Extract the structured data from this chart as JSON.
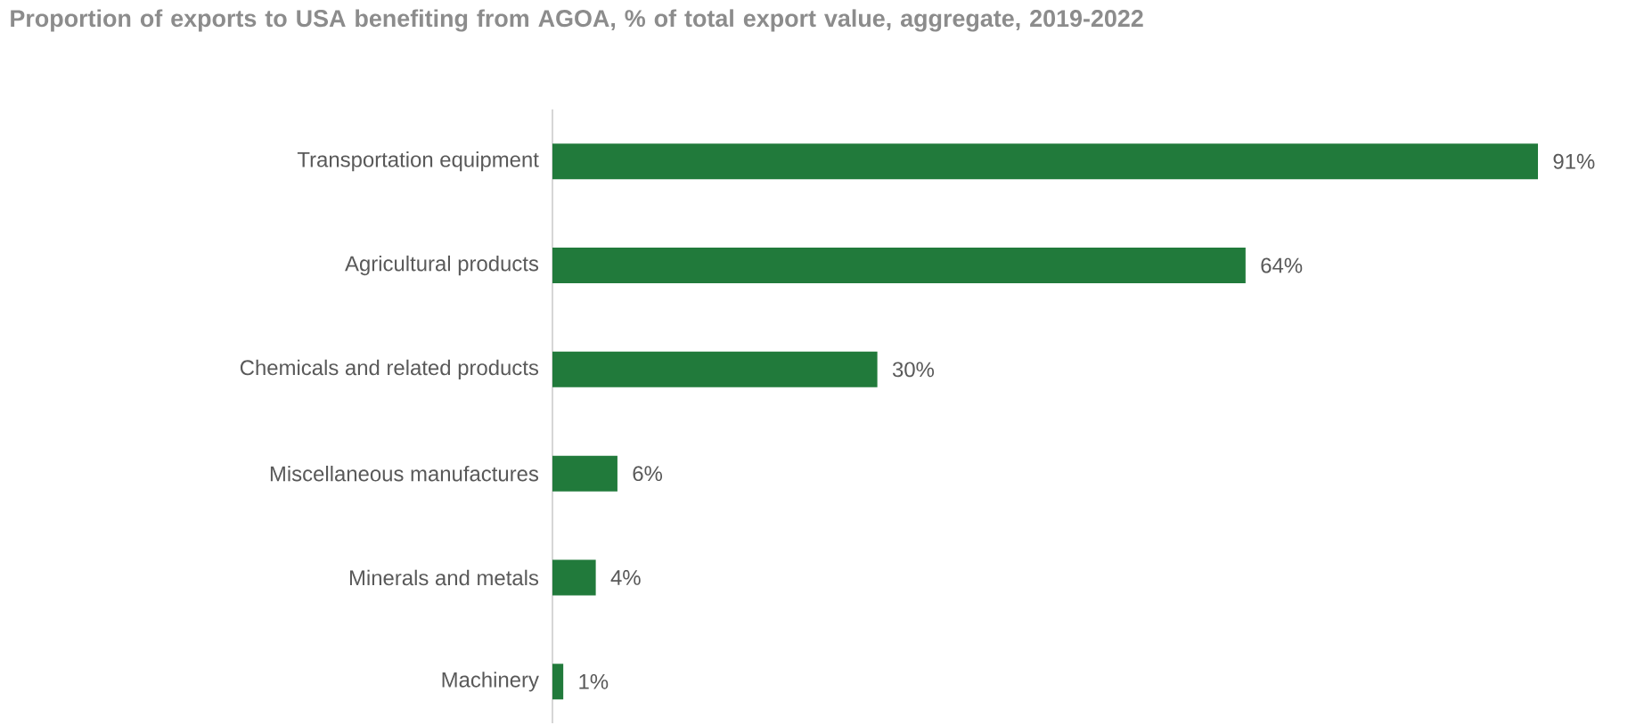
{
  "chart_data": {
    "type": "bar",
    "orientation": "horizontal",
    "title": "Proportion of exports to USA benefiting from AGOA, % of total export value, aggregate, 2019-2022",
    "categories": [
      "Transportation equipment",
      "Agricultural products",
      "Chemicals and related products",
      "Miscellaneous manufactures",
      "Minerals and metals",
      "Machinery"
    ],
    "values": [
      91,
      64,
      30,
      6,
      4,
      1
    ],
    "value_labels": [
      "91%",
      "64%",
      "30%",
      "6%",
      "4%",
      "1%"
    ],
    "color": "#217a3b"
  }
}
